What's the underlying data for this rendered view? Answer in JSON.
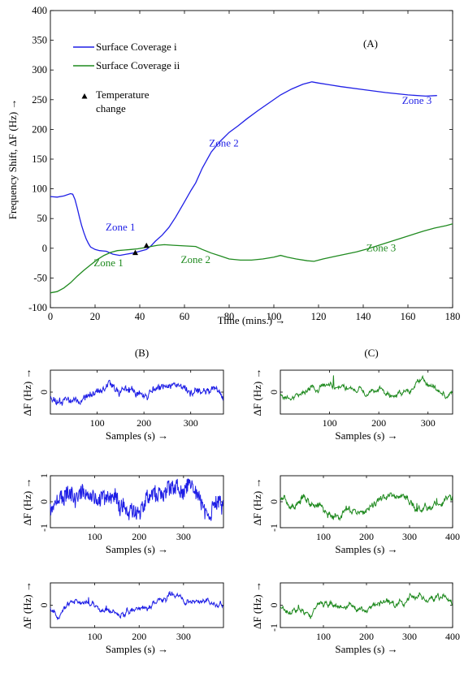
{
  "colors": {
    "blue": "#1f1fe6",
    "green": "#1f8a1f",
    "axis": "#000000"
  },
  "chart_data": [
    {
      "panel": "A",
      "type": "line",
      "panel_label": "(A)",
      "xlabel": "Time (mins.) →",
      "ylabel": "Frequency Shift,  ΔF (Hz) →",
      "xlim": [
        0,
        180
      ],
      "ylim": [
        -100,
        400
      ],
      "xticks": [
        0,
        20,
        40,
        60,
        80,
        100,
        120,
        140,
        160,
        180
      ],
      "yticks": [
        -100,
        -50,
        0,
        50,
        100,
        150,
        200,
        250,
        300,
        350,
        400
      ],
      "legend": {
        "placement": "top-left",
        "marker_label": "Temperature\nchange"
      },
      "series": [
        {
          "name": "Surface Coverage i",
          "color": "#1f1fe6",
          "points": [
            [
              0,
              87
            ],
            [
              3,
              86
            ],
            [
              6,
              88
            ],
            [
              9,
              92
            ],
            [
              10,
              91
            ],
            [
              11,
              82
            ],
            [
              12,
              68
            ],
            [
              13,
              52
            ],
            [
              14,
              38
            ],
            [
              15,
              26
            ],
            [
              16,
              16
            ],
            [
              17,
              8
            ],
            [
              18,
              2
            ],
            [
              20,
              -2
            ],
            [
              22,
              -4
            ],
            [
              25,
              -5
            ],
            [
              28,
              -10
            ],
            [
              31,
              -12
            ],
            [
              34,
              -10
            ],
            [
              37,
              -8
            ],
            [
              39,
              -6
            ],
            [
              41,
              -4
            ],
            [
              43,
              -2
            ],
            [
              45,
              4
            ],
            [
              47,
              12
            ],
            [
              50,
              22
            ],
            [
              53,
              35
            ],
            [
              56,
              52
            ],
            [
              60,
              78
            ],
            [
              63,
              98
            ],
            [
              65,
              110
            ],
            [
              68,
              135
            ],
            [
              72,
              162
            ],
            [
              76,
              180
            ],
            [
              80,
              195
            ],
            [
              84,
              206
            ],
            [
              88,
              218
            ],
            [
              93,
              232
            ],
            [
              98,
              245
            ],
            [
              103,
              258
            ],
            [
              108,
              268
            ],
            [
              113,
              276
            ],
            [
              117,
              280
            ],
            [
              120,
              278
            ],
            [
              125,
              275
            ],
            [
              130,
              272
            ],
            [
              140,
              267
            ],
            [
              150,
              262
            ],
            [
              160,
              258
            ],
            [
              168,
              256
            ],
            [
              173,
              257
            ]
          ],
          "annotations": [
            {
              "text": "Zone 1",
              "x": 38,
              "y": 30,
              "side": "left"
            },
            {
              "text": "Zone 2",
              "x": 71,
              "y": 171,
              "side": "right"
            },
            {
              "text": "Zone 3",
              "x": 164,
              "y": 243,
              "side": "center"
            }
          ]
        },
        {
          "name": "Surface Coverage ii",
          "color": "#1f8a1f",
          "points": [
            [
              0,
              -75
            ],
            [
              3,
              -73
            ],
            [
              6,
              -67
            ],
            [
              9,
              -58
            ],
            [
              12,
              -47
            ],
            [
              15,
              -37
            ],
            [
              18,
              -28
            ],
            [
              21,
              -19
            ],
            [
              24,
              -12
            ],
            [
              27,
              -7
            ],
            [
              30,
              -4
            ],
            [
              33,
              -3
            ],
            [
              36,
              -2
            ],
            [
              39,
              -1
            ],
            [
              42,
              1
            ],
            [
              45,
              3
            ],
            [
              48,
              5
            ],
            [
              51,
              6
            ],
            [
              55,
              5
            ],
            [
              60,
              4
            ],
            [
              65,
              3
            ],
            [
              68,
              -2
            ],
            [
              72,
              -8
            ],
            [
              76,
              -13
            ],
            [
              80,
              -18
            ],
            [
              85,
              -20
            ],
            [
              90,
              -20
            ],
            [
              95,
              -18
            ],
            [
              100,
              -15
            ],
            [
              103,
              -12
            ],
            [
              106,
              -15
            ],
            [
              110,
              -18
            ],
            [
              115,
              -21
            ],
            [
              118,
              -22
            ],
            [
              122,
              -18
            ],
            [
              127,
              -14
            ],
            [
              132,
              -10
            ],
            [
              137,
              -6
            ],
            [
              142,
              -1
            ],
            [
              147,
              5
            ],
            [
              152,
              11
            ],
            [
              157,
              17
            ],
            [
              162,
              23
            ],
            [
              167,
              29
            ],
            [
              172,
              34
            ],
            [
              177,
              38
            ],
            [
              180,
              41
            ]
          ],
          "annotations": [
            {
              "text": "Zone 1",
              "x": 26,
              "y": -30,
              "side": "center"
            },
            {
              "text": "Zone 2",
              "x": 65,
              "y": -25,
              "side": "center"
            },
            {
              "text": "Zone 3",
              "x": 148,
              "y": -5,
              "side": "center"
            }
          ]
        }
      ],
      "markers": [
        {
          "x": 38,
          "y": -8
        },
        {
          "x": 43,
          "y": 4
        }
      ]
    },
    {
      "panel": "B1",
      "type": "line",
      "panel_label": "(B)",
      "color": "#1f1fe6",
      "xlabel": "Samples (s) →",
      "ylabel": "ΔF (Hz) →",
      "xlim": [
        0,
        370
      ],
      "ylim": [
        -1,
        1
      ],
      "xticks": [
        100,
        200,
        300
      ],
      "yticks": [
        0
      ],
      "n": 370,
      "amp": 0.18,
      "seed": 11,
      "noise": 0.12,
      "base": 0.02
    },
    {
      "panel": "C1",
      "type": "line",
      "panel_label": "(C)",
      "color": "#1f8a1f",
      "xlabel": "Samples (s) →",
      "ylabel": "ΔF (Hz) →",
      "xlim": [
        0,
        350
      ],
      "ylim": [
        -1,
        1
      ],
      "xticks": [
        100,
        200,
        300
      ],
      "yticks": [
        0
      ],
      "n": 350,
      "amp": 0.16,
      "seed": 23,
      "noise": 0.05,
      "base": 0.05
    },
    {
      "panel": "B2",
      "type": "line",
      "color": "#1f1fe6",
      "xlabel": "Samples (s) →",
      "ylabel": "ΔF (Hz) →",
      "xlim": [
        0,
        390
      ],
      "ylim": [
        -1,
        1
      ],
      "xticks": [
        100,
        200,
        300
      ],
      "yticks": [
        -1,
        0,
        1
      ],
      "n": 390,
      "amp": 0.2,
      "seed": 37,
      "noise": 0.3,
      "base": 0.0
    },
    {
      "panel": "C2",
      "type": "line",
      "color": "#1f8a1f",
      "xlabel": "Samples (s) →",
      "ylabel": "ΔF (Hz) →",
      "xlim": [
        0,
        400
      ],
      "ylim": [
        -1,
        1
      ],
      "xticks": [
        100,
        200,
        300,
        400
      ],
      "yticks": [
        -1,
        0
      ],
      "n": 400,
      "amp": 0.3,
      "seed": 51,
      "noise": 0.06,
      "base": -0.05
    },
    {
      "panel": "B3",
      "type": "line",
      "color": "#1f1fe6",
      "xlabel": "Samples (s) →",
      "ylabel": "ΔF (Hz) →",
      "xlim": [
        0,
        390
      ],
      "ylim": [
        -1,
        1
      ],
      "xticks": [
        100,
        200,
        300
      ],
      "yticks": [
        0
      ],
      "n": 390,
      "amp": 0.08,
      "seed": 67,
      "noise": 0.05,
      "base": 0.0
    },
    {
      "panel": "C3",
      "type": "line",
      "color": "#1f8a1f",
      "xlabel": "Samples (s) →",
      "ylabel": "ΔF (Hz) →",
      "xlim": [
        0,
        400
      ],
      "ylim": [
        -1,
        1
      ],
      "xticks": [
        100,
        200,
        300,
        400
      ],
      "yticks": [
        -1,
        0
      ],
      "n": 400,
      "amp": 0.12,
      "seed": 79,
      "noise": 0.04,
      "base": 0.02
    }
  ]
}
